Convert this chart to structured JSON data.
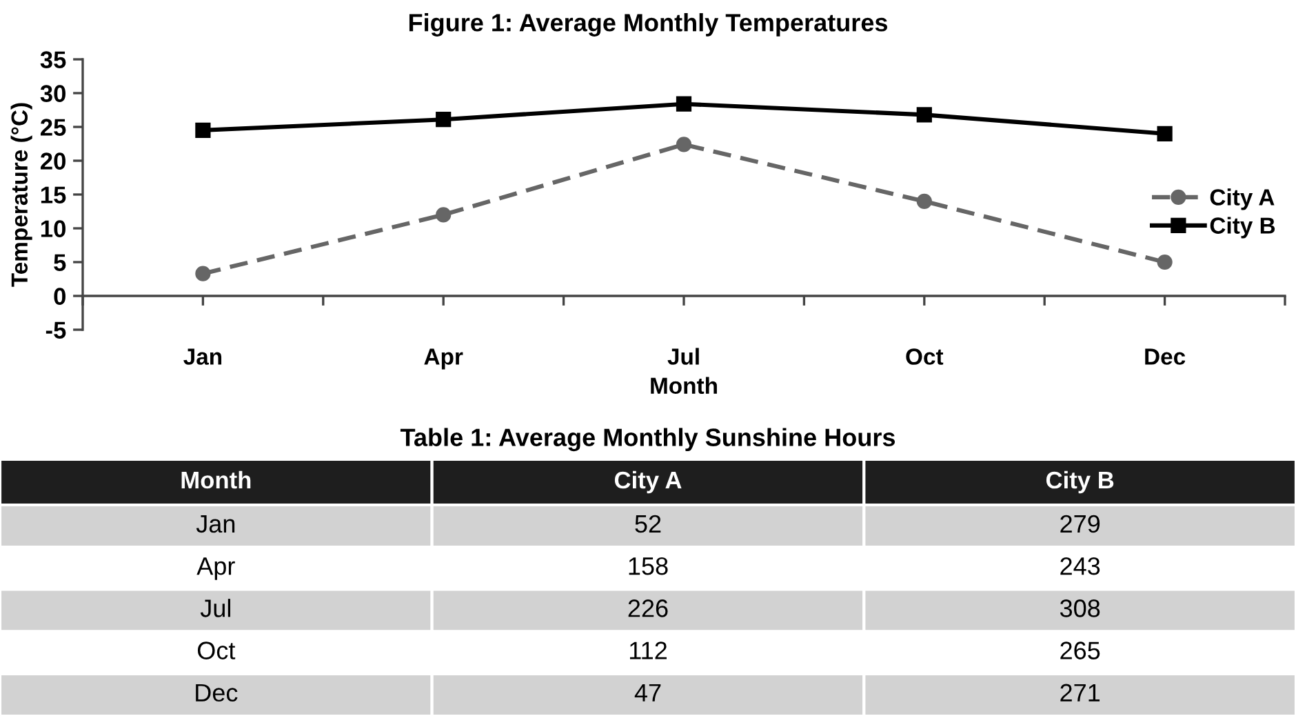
{
  "chart_data": [
    {
      "type": "line",
      "title": "Figure 1: Average Monthly Temperatures",
      "xlabel": "Month",
      "ylabel": "Temperature (°C)",
      "categories": [
        "Jan",
        "Apr",
        "Jul",
        "Oct",
        "Dec"
      ],
      "ylim": [
        -5,
        35
      ],
      "yticks": [
        -5,
        0,
        5,
        10,
        15,
        20,
        25,
        30,
        35
      ],
      "legend": "right",
      "series": [
        {
          "name": "City A",
          "color": "#666666",
          "marker": "circle",
          "line_style": "dashed",
          "values": [
            3.3,
            12,
            22.4,
            14,
            5
          ]
        },
        {
          "name": "City B",
          "color": "#000000",
          "marker": "square",
          "line_style": "solid",
          "values": [
            24.5,
            26.1,
            28.4,
            26.8,
            24
          ]
        }
      ]
    },
    {
      "type": "other",
      "title": "Table 1: Average Monthly Sunshine Hours",
      "xlabel": "Month",
      "categories": [
        "Jan",
        "Apr",
        "Jul",
        "Oct",
        "Dec"
      ],
      "data_labels": true,
      "series": [
        {
          "name": "City A",
          "colors": [
            "#d2d2d2",
            "#ffffff",
            "#d2d2d2",
            "#ffffff",
            "#d2d2d2"
          ],
          "values": [
            52,
            158,
            226,
            112,
            47
          ]
        },
        {
          "name": "City B",
          "colors": [
            "#d2d2d2",
            "#ffffff",
            "#d2d2d2",
            "#ffffff",
            "#d2d2d2"
          ],
          "values": [
            279,
            243,
            308,
            265,
            271
          ]
        }
      ]
    }
  ]
}
